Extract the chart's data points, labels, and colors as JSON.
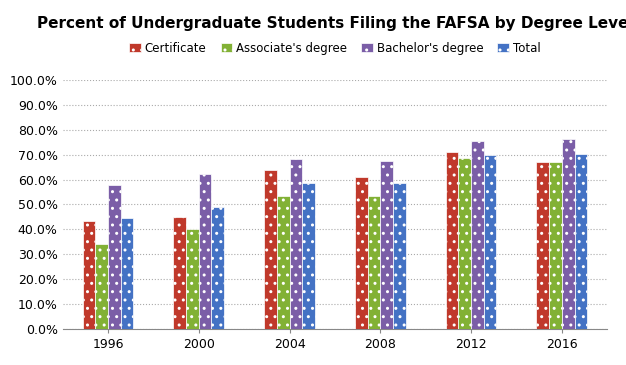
{
  "title": "Percent of Undergraduate Students Filing the FAFSA by Degree Level",
  "categories": [
    "1996",
    "2000",
    "2004",
    "2008",
    "2012",
    "2016"
  ],
  "series": {
    "Certificate": [
      0.435,
      0.451,
      0.638,
      0.61,
      0.71,
      0.67
    ],
    "Associate's degree": [
      0.34,
      0.402,
      0.535,
      0.532,
      0.685,
      0.672
    ],
    "Bachelor's degree": [
      0.58,
      0.622,
      0.681,
      0.673,
      0.755,
      0.762
    ],
    "Total": [
      0.447,
      0.49,
      0.585,
      0.585,
      0.7,
      0.702
    ]
  },
  "colors": {
    "Certificate": "#C0392B",
    "Associate's degree": "#82B135",
    "Bachelor's degree": "#7B5EA7",
    "Total": "#4472C4"
  },
  "hatch": {
    "Certificate": "..",
    "Associate's degree": "..",
    "Bachelor's degree": "..",
    "Total": ".."
  },
  "legend_order": [
    "Certificate",
    "Associate's degree",
    "Bachelor's degree",
    "Total"
  ],
  "ylim": [
    0.0,
    1.0
  ],
  "yticks": [
    0.0,
    0.1,
    0.2,
    0.3,
    0.4,
    0.5,
    0.6,
    0.7,
    0.8,
    0.9,
    1.0
  ],
  "bar_width": 0.14,
  "background_color": "#FFFFFF",
  "grid_color": "#AAAAAA",
  "title_fontsize": 11,
  "legend_fontsize": 8.5,
  "tick_fontsize": 9
}
